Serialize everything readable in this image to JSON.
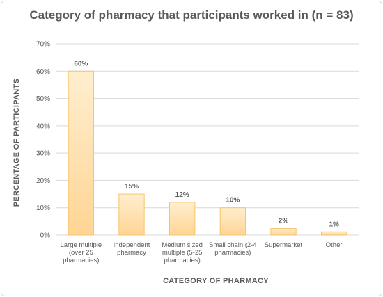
{
  "chart_data": {
    "type": "bar",
    "title": "Category of pharmacy that participants worked in (n = 83)",
    "xlabel": "CATEGORY OF PHARMACY",
    "ylabel": "PERCENTAGE OF PARTICIPANTS",
    "categories": [
      "Large multiple (over 25 pharmacies)",
      "Independent pharmacy",
      "Medium sized multiple (5-25 pharmacies)",
      "Small chain (2-4 pharmacies)",
      "Supermarket",
      "Other"
    ],
    "category_lines": [
      [
        "Large multiple",
        "(over 25",
        "pharmacies)"
      ],
      [
        "Independent",
        "pharmacy"
      ],
      [
        "Medium sized",
        "multiple (5-25",
        "pharmacies)"
      ],
      [
        "Small chain (2-4",
        "pharmacies)"
      ],
      [
        "Supermarket"
      ],
      [
        "Other"
      ]
    ],
    "values": [
      60,
      15,
      12,
      10,
      2.4,
      1.2
    ],
    "data_labels": [
      "60%",
      "15%",
      "12%",
      "10%",
      "2%",
      "1%"
    ],
    "ylim": [
      0,
      70
    ],
    "yticks": [
      "0%",
      "10%",
      "20%",
      "30%",
      "40%",
      "50%",
      "60%",
      "70%"
    ],
    "ytick_values": [
      0,
      10,
      20,
      30,
      40,
      50,
      60,
      70
    ],
    "grid": true,
    "legend": "none",
    "colors": {
      "bar_top": "#ffeecf",
      "bar_bottom": "#ffd594",
      "bar_stroke": "#f7c46d",
      "grid": "#d9d9d9",
      "text": "#595959"
    }
  }
}
